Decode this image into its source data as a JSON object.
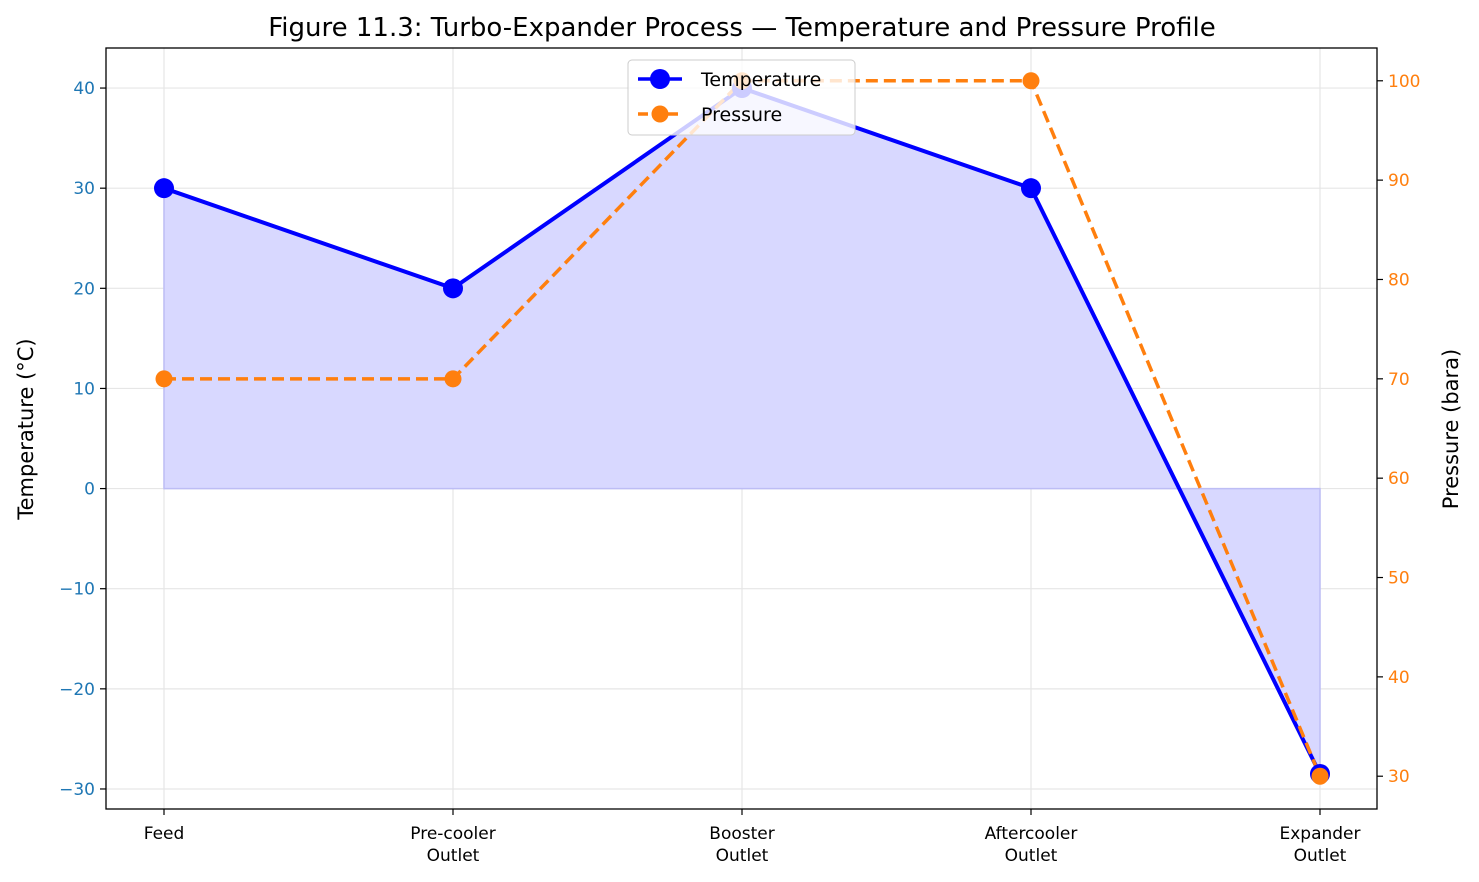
{
  "chart_data": {
    "type": "line",
    "title": "Figure 11.3: Turbo-Expander Process — Temperature and Pressure Profile",
    "categories": [
      [
        "Feed"
      ],
      [
        "Pre-cooler",
        "Outlet"
      ],
      [
        "Booster",
        "Outlet"
      ],
      [
        "Aftercooler",
        "Outlet"
      ],
      [
        "Expander",
        "Outlet"
      ]
    ],
    "y_left": {
      "label": "Temperature (°C)",
      "lim": [
        -32,
        44
      ],
      "ticks": [
        -30,
        -20,
        -10,
        0,
        10,
        20,
        30,
        40
      ],
      "tick_labels": [
        "−30",
        "−20",
        "−10",
        "0",
        "10",
        "20",
        "30",
        "40"
      ],
      "color": "#1f77b4"
    },
    "y_right": {
      "label": "Pressure (bara)",
      "lim": [
        26.7,
        103.3
      ],
      "ticks": [
        30,
        40,
        50,
        60,
        70,
        80,
        90,
        100
      ],
      "tick_labels": [
        "30",
        "40",
        "50",
        "60",
        "70",
        "80",
        "90",
        "100"
      ],
      "color": "#ff7f0e"
    },
    "series": [
      {
        "name": "Temperature",
        "axis": "left",
        "values": [
          30,
          20,
          40,
          30,
          -28.5
        ],
        "color": "#0000ff",
        "fill": true,
        "fill_color": "#d8d8ff",
        "line_style": "solid"
      },
      {
        "name": "Pressure",
        "axis": "right",
        "values": [
          70,
          70,
          100,
          100,
          30
        ],
        "color": "#ff7f0e",
        "line_style": "dashed"
      }
    ],
    "grid": true,
    "legend": "upper-center"
  }
}
